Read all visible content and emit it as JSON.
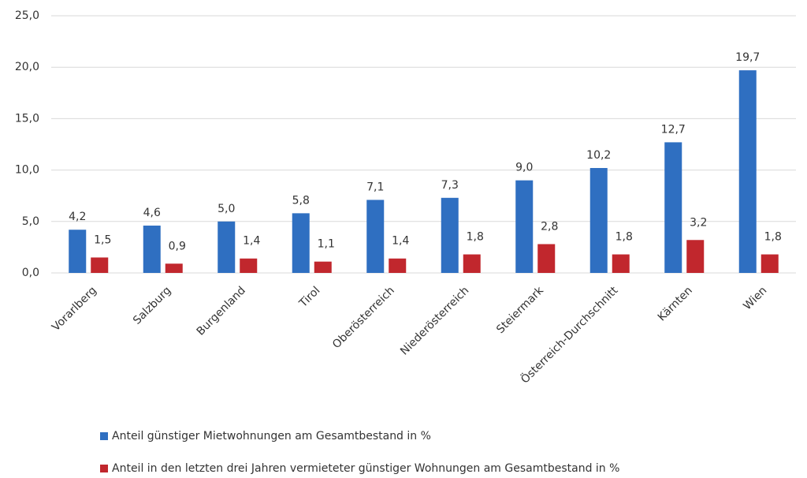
{
  "chart_data": {
    "type": "bar",
    "categories": [
      "Vorarlberg",
      "Salzburg",
      "Burgenland",
      "Tirol",
      "Oberösterreich",
      "Niederösterreich",
      "Steiermark",
      "Österreich-Durchschnitt",
      "Kärnten",
      "Wien"
    ],
    "series": [
      {
        "name": "Anteil günstiger Mietwohnungen am Gesamtbestand in %",
        "color": "#2f6fc1",
        "values": [
          4.2,
          4.6,
          5.0,
          5.8,
          7.1,
          7.3,
          9.0,
          10.2,
          12.7,
          19.7
        ],
        "value_labels": [
          "4,2",
          "4,6",
          "5,0",
          "5,8",
          "7,1",
          "7,3",
          "9,0",
          "10,2",
          "12,7",
          "19,7"
        ]
      },
      {
        "name": "Anteil in den letzten drei Jahren vermieteter günstiger Wohnungen am Gesamtbestand in %",
        "color": "#c1272d",
        "values": [
          1.5,
          0.9,
          1.4,
          1.1,
          1.4,
          1.8,
          2.8,
          1.8,
          3.2,
          1.8
        ],
        "value_labels": [
          "1,5",
          "0,9",
          "1,4",
          "1,1",
          "1,4",
          "1,8",
          "2,8",
          "1,8",
          "3,2",
          "1,8"
        ]
      }
    ],
    "ylim": [
      0,
      25
    ],
    "yticks": [
      {
        "value": 0,
        "label": "0,0"
      },
      {
        "value": 5,
        "label": "5,0"
      },
      {
        "value": 10,
        "label": "10,0"
      },
      {
        "value": 15,
        "label": "15,0"
      },
      {
        "value": 20,
        "label": "20,0"
      },
      {
        "value": 25,
        "label": "25,0"
      }
    ],
    "grid": true,
    "legend": "bottom"
  }
}
